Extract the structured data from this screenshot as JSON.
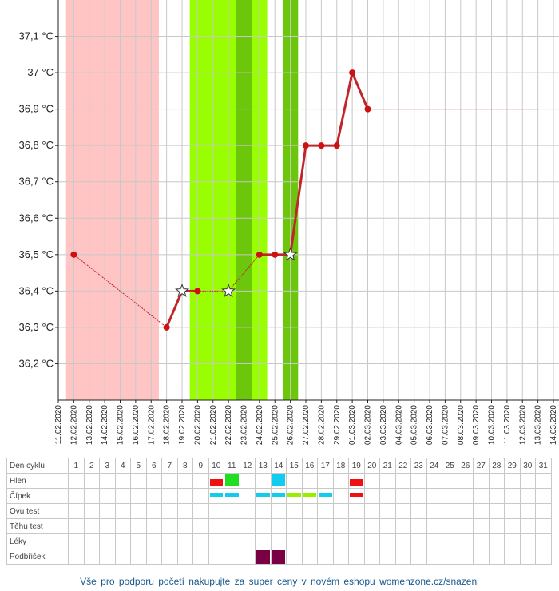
{
  "chart_data": {
    "type": "line",
    "y_ticks": [
      "36,2 °C",
      "36,3 °C",
      "36,4 °C",
      "36,5 °C",
      "36,6 °C",
      "36,7 °C",
      "36,8 °C",
      "36,9 °C",
      "37 °C",
      "37,1 °C"
    ],
    "y_tick_values": [
      36.2,
      36.3,
      36.4,
      36.5,
      36.6,
      36.7,
      36.8,
      36.9,
      37.0,
      37.1
    ],
    "ylim": [
      36.1,
      37.2
    ],
    "x_dates": [
      "11.02.2020",
      "12.02.2020",
      "13.02.2020",
      "14.02.2020",
      "15.02.2020",
      "16.02.2020",
      "17.02.2020",
      "18.02.2020",
      "19.02.2020",
      "20.02.2020",
      "21.02.2020",
      "22.02.2020",
      "23.02.2020",
      "24.02.2020",
      "25.02.2020",
      "26.02.2020",
      "27.02.2020",
      "28.02.2020",
      "29.02.2020",
      "01.03.2020",
      "02.03.2020",
      "03.03.2020",
      "04.03.2020",
      "05.03.2020",
      "06.03.2020",
      "07.03.2020",
      "08.03.2020",
      "09.03.2020",
      "10.03.2020",
      "11.03.2020",
      "12.03.2020",
      "13.03.2020",
      "14.03.2020"
    ],
    "temperature_points": [
      {
        "date": "12.02.2020",
        "value": 36.5,
        "marker": "dot"
      },
      {
        "date": "18.02.2020",
        "value": 36.3,
        "marker": "dot"
      },
      {
        "date": "19.02.2020",
        "value": 36.4,
        "marker": "star"
      },
      {
        "date": "20.02.2020",
        "value": 36.4,
        "marker": "dot"
      },
      {
        "date": "22.02.2020",
        "value": 36.4,
        "marker": "star"
      },
      {
        "date": "24.02.2020",
        "value": 36.5,
        "marker": "dot"
      },
      {
        "date": "25.02.2020",
        "value": 36.5,
        "marker": "dot"
      },
      {
        "date": "26.02.2020",
        "value": 36.5,
        "marker": "star"
      },
      {
        "date": "27.02.2020",
        "value": 36.8,
        "marker": "dot"
      },
      {
        "date": "28.02.2020",
        "value": 36.8,
        "marker": "dot"
      },
      {
        "date": "29.02.2020",
        "value": 36.8,
        "marker": "dot"
      },
      {
        "date": "01.03.2020",
        "value": 37.0,
        "marker": "dot"
      },
      {
        "date": "02.03.2020",
        "value": 36.9,
        "marker": "dot"
      }
    ],
    "baseline_value": 36.9,
    "baseline_until": "13.03.2020",
    "bands": [
      {
        "from": "12.02.2020",
        "to": "17.02.2020",
        "color": "#ffc4c4"
      },
      {
        "from": "20.02.2020",
        "to": "24.02.2020",
        "color": "#99ff00"
      },
      {
        "from": "23.02.2020",
        "to": "23.02.2020",
        "color": "#6cc60c"
      },
      {
        "from": "26.02.2020",
        "to": "26.02.2020",
        "color": "#6cc60c"
      }
    ],
    "colors": {
      "line": "#c0252a",
      "dot": "#cc1111",
      "grid": "#c8c8c8"
    },
    "grid": true
  },
  "table": {
    "rows": [
      "Den cyklu",
      "Hlen",
      "Čípek",
      "Ovu test",
      "Těhu test",
      "Léky",
      "Podbřišek"
    ],
    "days": [
      "1",
      "2",
      "3",
      "4",
      "5",
      "6",
      "7",
      "8",
      "9",
      "10",
      "11",
      "12",
      "13",
      "14",
      "15",
      "16",
      "17",
      "18",
      "19",
      "20",
      "21",
      "22",
      "23",
      "24",
      "25",
      "26",
      "27",
      "28",
      "29",
      "30",
      "31"
    ],
    "hlen": [
      {
        "day": 10,
        "color": "#ee1111",
        "level": "low"
      },
      {
        "day": 11,
        "color": "#22dd22",
        "level": "high"
      },
      {
        "day": 14,
        "color": "#11ccee",
        "level": "high"
      },
      {
        "day": 19,
        "color": "#ee1111",
        "level": "low"
      }
    ],
    "cipek": [
      {
        "day": 10,
        "color": "#11ccee"
      },
      {
        "day": 11,
        "color": "#11ccee"
      },
      {
        "day": 13,
        "color": "#11ccee"
      },
      {
        "day": 14,
        "color": "#11ccee"
      },
      {
        "day": 15,
        "color": "#99ee00"
      },
      {
        "day": 16,
        "color": "#99ee00"
      },
      {
        "day": 17,
        "color": "#11ccee"
      },
      {
        "day": 19,
        "color": "#ee1111"
      }
    ],
    "podbrisek": [
      {
        "day": 13,
        "color": "#7a0044"
      },
      {
        "day": 14,
        "color": "#7a0044"
      }
    ]
  },
  "footer": "Vše pro podporu početí nakupujte za super ceny v novém eshopu womenzone.cz/snazeni"
}
